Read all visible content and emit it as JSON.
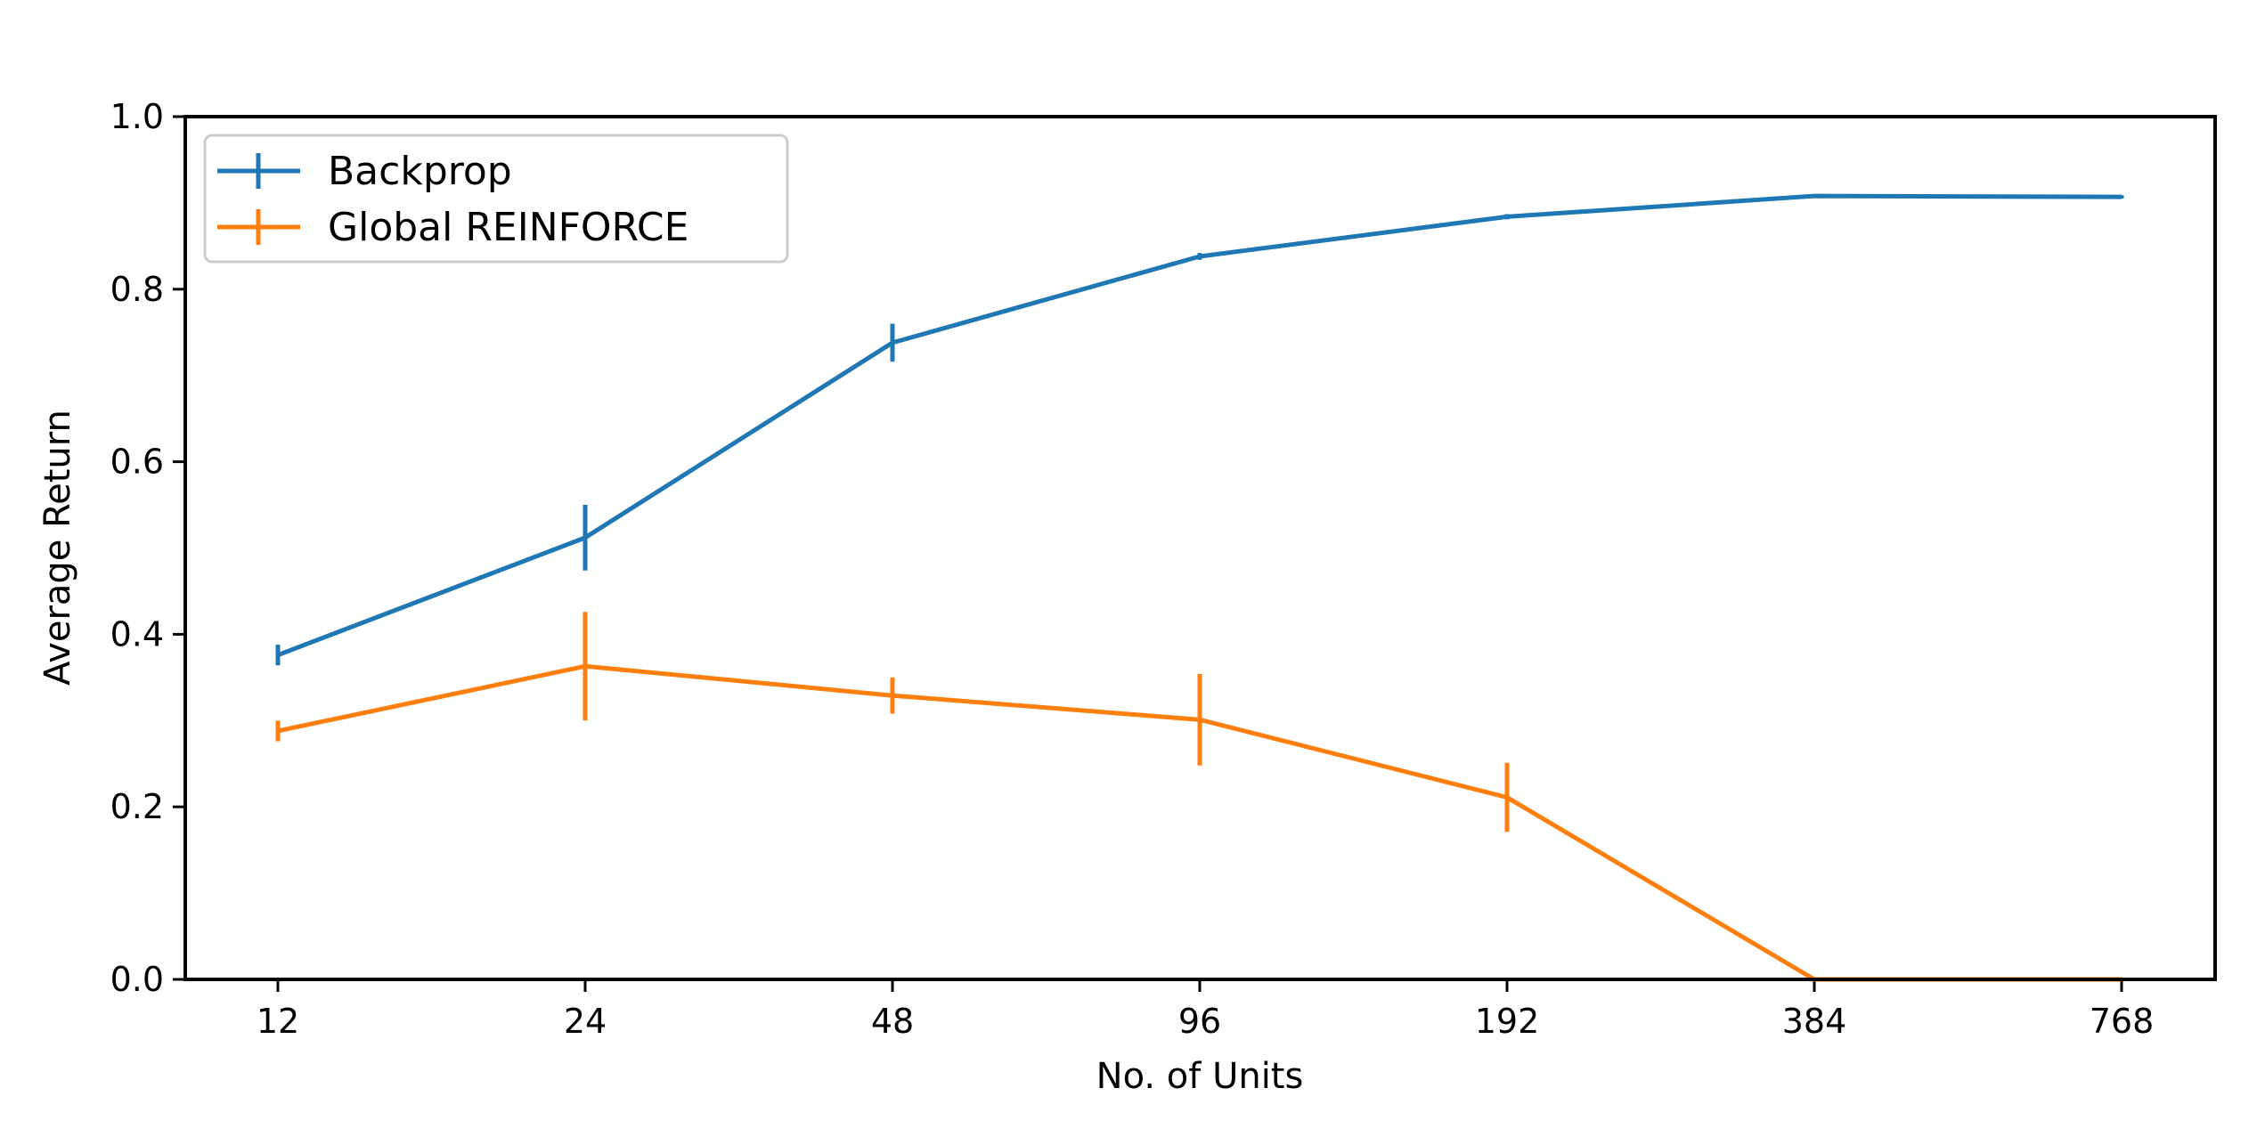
{
  "chart_data": {
    "type": "line",
    "xlabel": "No. of Units",
    "ylabel": "Average Return",
    "xscale": "log2",
    "x": [
      12,
      24,
      48,
      96,
      192,
      384,
      768
    ],
    "x_tick_labels": [
      "12",
      "24",
      "48",
      "96",
      "192",
      "384",
      "768"
    ],
    "ylim": [
      0.0,
      1.0
    ],
    "y_ticks": [
      0.0,
      0.2,
      0.4,
      0.6,
      0.8,
      1.0
    ],
    "y_tick_labels": [
      "0.0",
      "0.2",
      "0.4",
      "0.6",
      "0.8",
      "1.0"
    ],
    "grid": false,
    "legend_position": "top-left",
    "series": [
      {
        "name": "Backprop",
        "color": "#1f77b4",
        "values": [
          0.376,
          0.512,
          0.738,
          0.838,
          0.884,
          0.908,
          0.907
        ],
        "errors": [
          0.012,
          0.038,
          0.022,
          0.004,
          0.003,
          0.002,
          0.002
        ]
      },
      {
        "name": "Global REINFORCE",
        "color": "#ff7f0e",
        "values": [
          0.288,
          0.363,
          0.329,
          0.301,
          0.211,
          0.0,
          0.0
        ],
        "errors": [
          0.012,
          0.063,
          0.021,
          0.053,
          0.04,
          0.0,
          0.0
        ]
      }
    ]
  }
}
